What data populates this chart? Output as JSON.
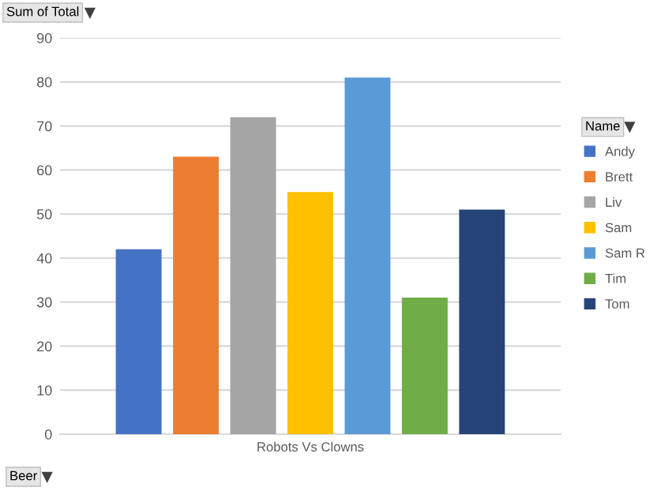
{
  "chart_data": {
    "type": "bar",
    "ylabel": "Sum of Total",
    "legend_title": "Name",
    "annotations": [
      "Beer"
    ],
    "categories": [
      "Robots Vs Clowns"
    ],
    "series": [
      {
        "name": "Andy",
        "color": "#4472c4",
        "values": [
          42
        ]
      },
      {
        "name": "Brett",
        "color": "#ed7d31",
        "values": [
          63
        ]
      },
      {
        "name": "Liv",
        "color": "#a5a5a5",
        "values": [
          72
        ]
      },
      {
        "name": "Sam",
        "color": "#ffc000",
        "values": [
          55
        ]
      },
      {
        "name": "Sam R",
        "color": "#5b9bd5",
        "values": [
          81
        ]
      },
      {
        "name": "Tim",
        "color": "#70ad47",
        "values": [
          31
        ]
      },
      {
        "name": "Tom",
        "color": "#264478",
        "values": [
          51
        ]
      }
    ],
    "ylim": [
      0,
      90
    ],
    "yticks": [
      0,
      10,
      20,
      30,
      40,
      50,
      60,
      70,
      80,
      90
    ],
    "grid": "y",
    "legend": "right"
  }
}
